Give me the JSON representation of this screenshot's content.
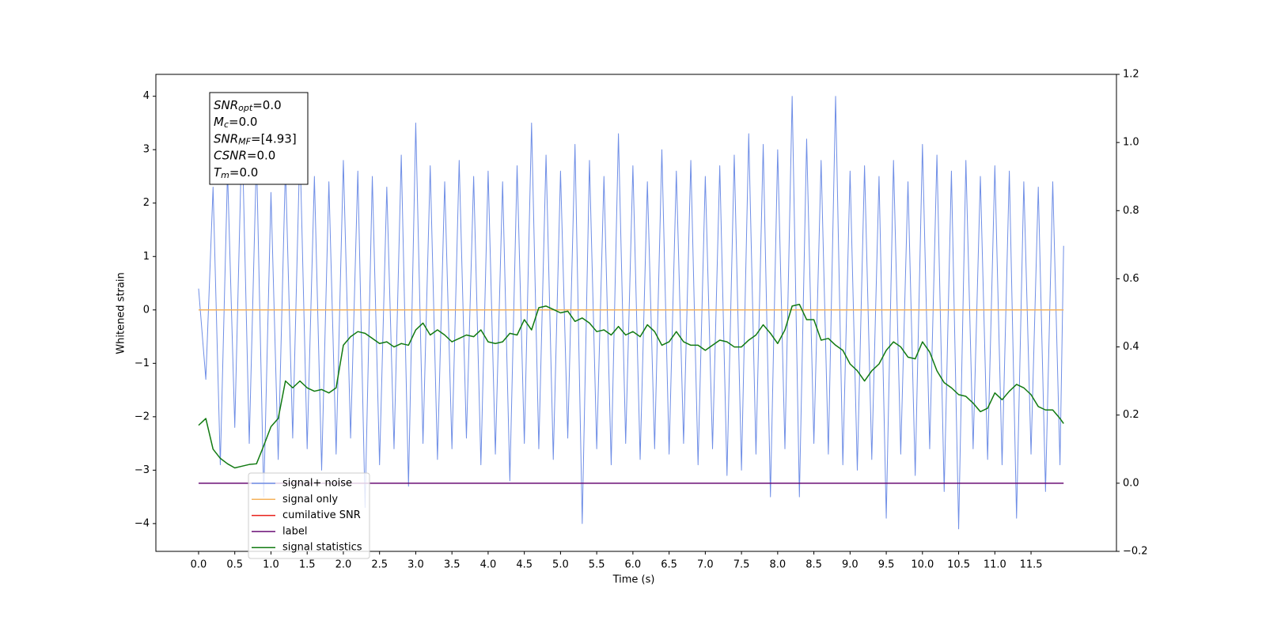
{
  "chart_data": {
    "type": "line",
    "xlabel": "Time (s)",
    "ylabel": "Whitened strain",
    "xlim": [
      -0.59,
      12.68
    ],
    "ylim": [
      -4.52,
      4.41
    ],
    "y2lim": [
      -0.2,
      1.2
    ],
    "xticks": [
      {
        "value": 0,
        "label": "0.0"
      },
      {
        "value": 0.5,
        "label": "0.5"
      },
      {
        "value": 1,
        "label": "1.0"
      },
      {
        "value": 1.5,
        "label": "1.5"
      },
      {
        "value": 2,
        "label": "2.0"
      },
      {
        "value": 2.5,
        "label": "2.5"
      },
      {
        "value": 3,
        "label": "3.0"
      },
      {
        "value": 3.5,
        "label": "3.5"
      },
      {
        "value": 4,
        "label": "4.0"
      },
      {
        "value": 4.5,
        "label": "4.5"
      },
      {
        "value": 5,
        "label": "5.0"
      },
      {
        "value": 5.5,
        "label": "5.5"
      },
      {
        "value": 6,
        "label": "6.0"
      },
      {
        "value": 6.5,
        "label": "6.5"
      },
      {
        "value": 7,
        "label": "7.0"
      },
      {
        "value": 7.5,
        "label": "7.5"
      },
      {
        "value": 8,
        "label": "8.0"
      },
      {
        "value": 8.5,
        "label": "8.5"
      },
      {
        "value": 9,
        "label": "9.0"
      },
      {
        "value": 9.5,
        "label": "9.5"
      },
      {
        "value": 10,
        "label": "10.0"
      },
      {
        "value": 10.5,
        "label": "10.5"
      },
      {
        "value": 11,
        "label": "11.0"
      },
      {
        "value": 11.5,
        "label": "11.5"
      }
    ],
    "yticks": [
      {
        "value": -4,
        "label": "−4"
      },
      {
        "value": -3,
        "label": "−3"
      },
      {
        "value": -2,
        "label": "−2"
      },
      {
        "value": -1,
        "label": "−1"
      },
      0,
      1,
      2,
      3,
      4
    ],
    "y2ticks": [
      {
        "value": -0.2,
        "label": "−0.2"
      },
      {
        "value": 0,
        "label": "0.0"
      },
      0.2,
      0.4,
      0.6,
      0.8,
      {
        "value": 1,
        "label": "1.0"
      },
      1.2
    ],
    "x": [
      0,
      0.1,
      0.2,
      0.3,
      0.4,
      0.5,
      0.6,
      0.7,
      0.8,
      0.9,
      1,
      1.1,
      1.2,
      1.3,
      1.4,
      1.5,
      1.6,
      1.7,
      1.8,
      1.9,
      2,
      2.1,
      2.2,
      2.3,
      2.4,
      2.5,
      2.6,
      2.7,
      2.8,
      2.9,
      3,
      3.1,
      3.2,
      3.3,
      3.4,
      3.5,
      3.6,
      3.7,
      3.8,
      3.9,
      4,
      4.1,
      4.2,
      4.3,
      4.4,
      4.5,
      4.6,
      4.7,
      4.8,
      4.9,
      5,
      5.1,
      5.2,
      5.3,
      5.4,
      5.5,
      5.6,
      5.7,
      5.8,
      5.9,
      6,
      6.1,
      6.2,
      6.3,
      6.4,
      6.5,
      6.6,
      6.7,
      6.8,
      6.9,
      7,
      7.1,
      7.2,
      7.3,
      7.4,
      7.5,
      7.6,
      7.7,
      7.8,
      7.9,
      8,
      8.1,
      8.2,
      8.3,
      8.4,
      8.5,
      8.6,
      8.7,
      8.8,
      8.9,
      9,
      9.1,
      9.2,
      9.3,
      9.4,
      9.5,
      9.6,
      9.7,
      9.8,
      9.9,
      10,
      10.1,
      10.2,
      10.3,
      10.4,
      10.5,
      10.6,
      10.7,
      10.8,
      10.9,
      11,
      11.1,
      11.2,
      11.3,
      11.4,
      11.5,
      11.6,
      11.7,
      11.8,
      11.9,
      11.95
    ],
    "series": [
      {
        "name": "signal+ noise",
        "color": "#6f8ee6",
        "values": [
          0.4,
          -1.3,
          2.3,
          -2.9,
          2.6,
          -2.2,
          3.4,
          -2.5,
          2.9,
          -3.5,
          2.2,
          -2.8,
          2.7,
          -2.4,
          3.1,
          -2.6,
          2.5,
          -3.0,
          2.4,
          -2.7,
          2.8,
          -2.4,
          2.6,
          -3.7,
          2.5,
          -2.9,
          2.3,
          -2.6,
          2.9,
          -3.3,
          3.5,
          -2.5,
          2.7,
          -2.8,
          2.4,
          -2.6,
          2.8,
          -2.4,
          2.5,
          -2.9,
          2.6,
          -2.7,
          2.4,
          -3.2,
          2.7,
          -2.5,
          3.5,
          -2.6,
          2.9,
          -2.8,
          2.6,
          -2.4,
          3.1,
          -4.0,
          2.8,
          -2.6,
          2.5,
          -2.9,
          3.3,
          -2.5,
          2.7,
          -2.8,
          2.4,
          -2.6,
          3.0,
          -2.7,
          2.6,
          -2.5,
          2.8,
          -2.9,
          2.5,
          -2.6,
          2.7,
          -3.1,
          2.9,
          -3.0,
          3.3,
          -2.7,
          3.1,
          -3.5,
          3.0,
          -2.6,
          4.0,
          -3.5,
          3.2,
          -2.5,
          2.8,
          -2.7,
          4.0,
          -2.9,
          2.6,
          -3.0,
          2.7,
          -2.8,
          2.5,
          -3.9,
          2.8,
          -2.7,
          2.4,
          -3.1,
          3.1,
          -2.6,
          2.9,
          -3.4,
          2.6,
          -4.1,
          2.8,
          -2.6,
          2.5,
          -2.8,
          2.7,
          -2.9,
          2.6,
          -3.9,
          2.4,
          -2.7,
          2.3,
          -3.4,
          2.4,
          -2.9,
          1.2
        ]
      },
      {
        "name": "signal only",
        "color": "#f5b25b",
        "x": [
          0,
          11.95
        ],
        "values": [
          0,
          0
        ]
      },
      {
        "name": "cumilative SNR",
        "color": "#e8201b",
        "x": [],
        "values": []
      },
      {
        "name": "label",
        "color": "#6a0d75",
        "axis": "y2",
        "x": [
          0,
          11.95
        ],
        "values": [
          0,
          0
        ]
      },
      {
        "name": "signal statistics",
        "color": "#117a11",
        "axis": "y2",
        "values": [
          0.17,
          0.19,
          0.1,
          0.073,
          0.057,
          0.045,
          0.05,
          0.055,
          0.057,
          0.11,
          0.166,
          0.19,
          0.3,
          0.28,
          0.3,
          0.28,
          0.27,
          0.275,
          0.265,
          0.28,
          0.405,
          0.43,
          0.445,
          0.44,
          0.425,
          0.41,
          0.415,
          0.4,
          0.41,
          0.405,
          0.45,
          0.47,
          0.435,
          0.45,
          0.435,
          0.415,
          0.425,
          0.435,
          0.43,
          0.45,
          0.415,
          0.41,
          0.415,
          0.44,
          0.435,
          0.48,
          0.45,
          0.515,
          0.52,
          0.51,
          0.5,
          0.505,
          0.475,
          0.485,
          0.47,
          0.445,
          0.45,
          0.435,
          0.46,
          0.435,
          0.445,
          0.43,
          0.465,
          0.445,
          0.405,
          0.415,
          0.445,
          0.415,
          0.405,
          0.405,
          0.39,
          0.405,
          0.42,
          0.415,
          0.4,
          0.4,
          0.42,
          0.435,
          0.465,
          0.44,
          0.41,
          0.45,
          0.52,
          0.525,
          0.48,
          0.48,
          0.42,
          0.425,
          0.405,
          0.39,
          0.35,
          0.33,
          0.3,
          0.33,
          0.35,
          0.39,
          0.415,
          0.4,
          0.37,
          0.365,
          0.415,
          0.385,
          0.33,
          0.295,
          0.28,
          0.26,
          0.255,
          0.235,
          0.21,
          0.22,
          0.265,
          0.245,
          0.27,
          0.29,
          0.28,
          0.26,
          0.225,
          0.215,
          0.215,
          0.19,
          0.175
        ]
      }
    ],
    "annotations": [
      {
        "label": "SNR",
        "sub": "opt",
        "text": "=0.0"
      },
      {
        "label": "M",
        "sub": "c",
        "text": "=0.0"
      },
      {
        "label": "SNR",
        "sub": "MF",
        "text": "=[4.93]"
      },
      {
        "label": "CSNR",
        "text": "=0.0"
      },
      {
        "label": "T",
        "sub": "m",
        "text": "=0.0"
      }
    ]
  }
}
